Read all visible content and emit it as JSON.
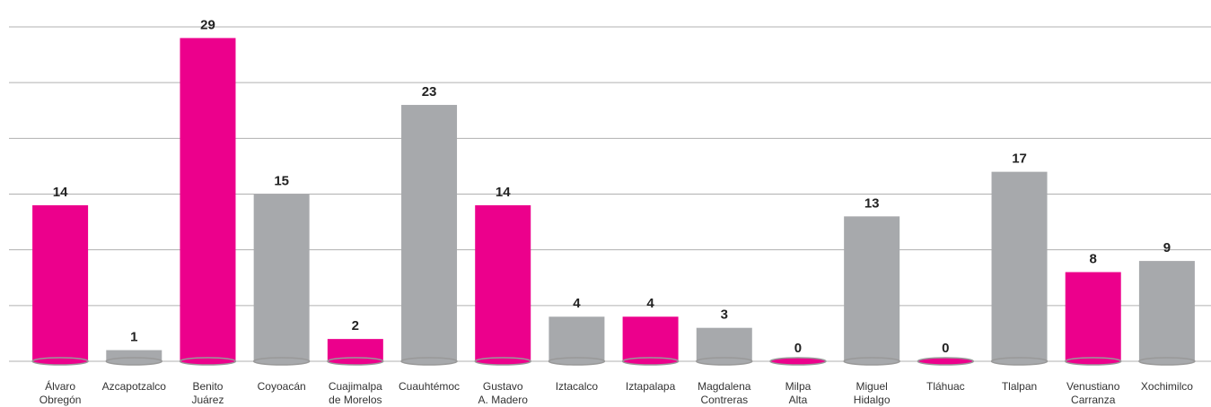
{
  "chart_data": {
    "type": "bar",
    "categories": [
      [
        "Álvaro",
        "Obregón"
      ],
      [
        "Azcapotzalco"
      ],
      [
        "Benito",
        "Juárez"
      ],
      [
        "Coyoacán"
      ],
      [
        "Cuajimalpa",
        "de Morelos"
      ],
      [
        "Cuauhtémoc"
      ],
      [
        "Gustavo",
        "A. Madero"
      ],
      [
        "Iztacalco"
      ],
      [
        "Iztapalapa"
      ],
      [
        "Magdalena",
        "Contreras"
      ],
      [
        "Milpa",
        "Alta"
      ],
      [
        "Miguel",
        "Hidalgo"
      ],
      [
        "Tláhuac"
      ],
      [
        "Tlalpan"
      ],
      [
        "Venustiano",
        "Carranza"
      ],
      [
        "Xochimilco"
      ]
    ],
    "values": [
      14,
      1,
      29,
      15,
      2,
      23,
      14,
      4,
      4,
      3,
      0,
      13,
      0,
      17,
      8,
      9
    ],
    "colors": [
      "#ec008c",
      "#a7a9ac",
      "#ec008c",
      "#a7a9ac",
      "#ec008c",
      "#a7a9ac",
      "#ec008c",
      "#a7a9ac",
      "#ec008c",
      "#a7a9ac",
      "#ec008c",
      "#a7a9ac",
      "#ec008c",
      "#a7a9ac",
      "#ec008c",
      "#a7a9ac"
    ],
    "ylim": [
      0,
      30
    ],
    "yticks": [
      0,
      5,
      10,
      15,
      20,
      25,
      30
    ],
    "grid": true
  }
}
